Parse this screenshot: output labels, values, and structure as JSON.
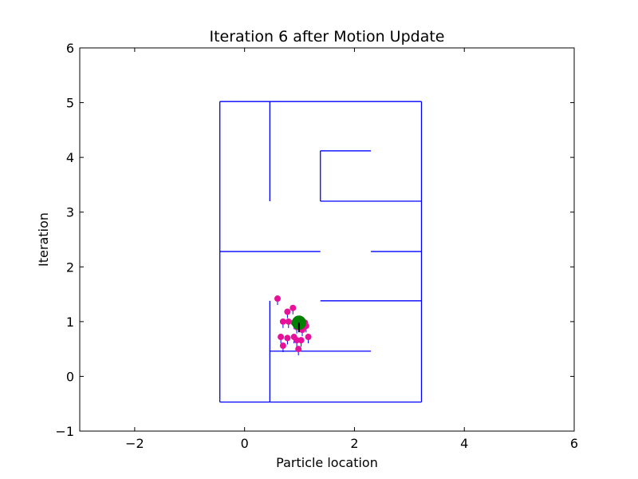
{
  "chart_data": {
    "type": "scatter",
    "title": "Iteration 6 after Motion Update",
    "xlabel": "Particle location",
    "ylabel": "Iteration",
    "xlim": [
      -3,
      6
    ],
    "ylim": [
      -1,
      6
    ],
    "xticks": [
      -2,
      0,
      2,
      4,
      6
    ],
    "yticks": [
      -1,
      0,
      1,
      2,
      3,
      4,
      5,
      6
    ],
    "xtick_labels": [
      "−2",
      "0",
      "2",
      "4",
      "6"
    ],
    "ytick_labels": [
      "−1",
      "0",
      "1",
      "2",
      "3",
      "4",
      "5",
      "6"
    ],
    "grid": false,
    "colors": {
      "walls": "#0000ff",
      "particles": "#e8109a",
      "particle_heading": "#0000ff",
      "robot": "#008000",
      "robot_heading": "#000000"
    },
    "walls": [
      {
        "x": [
          -0.45,
          3.22
        ],
        "y": [
          5.02,
          5.02
        ]
      },
      {
        "x": [
          -0.45,
          -0.45
        ],
        "y": [
          5.02,
          -0.47
        ]
      },
      {
        "x": [
          -0.45,
          3.22
        ],
        "y": [
          -0.47,
          -0.47
        ]
      },
      {
        "x": [
          3.22,
          3.22
        ],
        "y": [
          5.02,
          -0.47
        ]
      },
      {
        "x": [
          0.46,
          0.46
        ],
        "y": [
          5.02,
          3.2
        ]
      },
      {
        "x": [
          1.38,
          1.38
        ],
        "y": [
          4.12,
          3.2
        ]
      },
      {
        "x": [
          1.38,
          2.3
        ],
        "y": [
          4.12,
          4.12
        ]
      },
      {
        "x": [
          1.38,
          3.22
        ],
        "y": [
          3.2,
          3.2
        ]
      },
      {
        "x": [
          -0.45,
          1.38
        ],
        "y": [
          2.28,
          2.28
        ]
      },
      {
        "x": [
          2.3,
          3.22
        ],
        "y": [
          2.28,
          2.28
        ]
      },
      {
        "x": [
          1.38,
          3.22
        ],
        "y": [
          1.38,
          1.38
        ]
      },
      {
        "x": [
          0.46,
          0.46
        ],
        "y": [
          1.38,
          -0.47
        ]
      },
      {
        "x": [
          0.46,
          2.3
        ],
        "y": [
          0.46,
          0.46
        ]
      }
    ],
    "particles": [
      {
        "x": 0.6,
        "y": 1.42
      },
      {
        "x": 0.88,
        "y": 1.25
      },
      {
        "x": 0.78,
        "y": 1.18
      },
      {
        "x": 0.7,
        "y": 1.0
      },
      {
        "x": 0.8,
        "y": 1.0
      },
      {
        "x": 0.9,
        "y": 0.98
      },
      {
        "x": 0.98,
        "y": 1.0
      },
      {
        "x": 1.05,
        "y": 1.02
      },
      {
        "x": 1.1,
        "y": 0.98
      },
      {
        "x": 1.12,
        "y": 0.92
      },
      {
        "x": 0.95,
        "y": 0.9
      },
      {
        "x": 1.05,
        "y": 0.85
      },
      {
        "x": 0.66,
        "y": 0.72
      },
      {
        "x": 0.78,
        "y": 0.7
      },
      {
        "x": 0.9,
        "y": 0.72
      },
      {
        "x": 0.95,
        "y": 0.66
      },
      {
        "x": 1.03,
        "y": 0.66
      },
      {
        "x": 1.16,
        "y": 0.72
      },
      {
        "x": 0.7,
        "y": 0.56
      },
      {
        "x": 0.98,
        "y": 0.5
      }
    ],
    "robot": {
      "x": 0.99,
      "y": 0.98
    }
  }
}
